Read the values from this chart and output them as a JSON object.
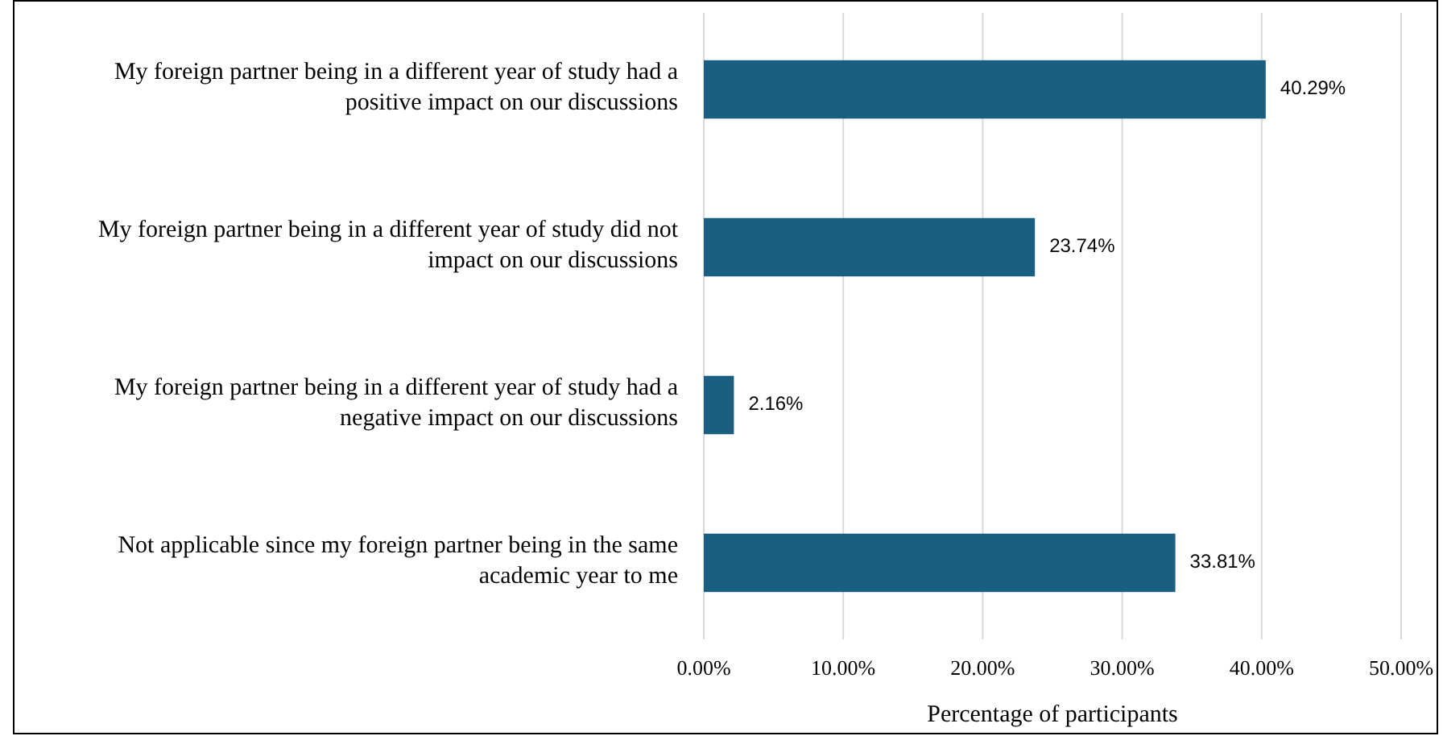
{
  "chart_data": {
    "type": "bar",
    "orientation": "horizontal",
    "xlabel": "Percentage of participants",
    "categories": [
      "My foreign partner being in a different year of study had a positive impact on our discussions",
      "My foreign partner being in a different year of study did not impact on our discussions",
      "My foreign partner being in a different year of study had a negative impact on our discussions",
      "Not applicable since my foreign partner being in the same academic year to me"
    ],
    "values": [
      40.29,
      23.74,
      2.16,
      33.81
    ],
    "value_labels": [
      "40.29%",
      "23.74%",
      "2.16%",
      "33.81%"
    ],
    "color": "#1a5f82",
    "xlim": [
      0,
      50
    ],
    "xticks": [
      {
        "value": 0,
        "label": "0.00%"
      },
      {
        "value": 10,
        "label": "10.00%"
      },
      {
        "value": 20,
        "label": "20.00%"
      },
      {
        "value": 30,
        "label": "30.00%"
      },
      {
        "value": 40,
        "label": "40.00%"
      },
      {
        "value": 50,
        "label": "50.00%"
      }
    ],
    "grid": "x"
  }
}
